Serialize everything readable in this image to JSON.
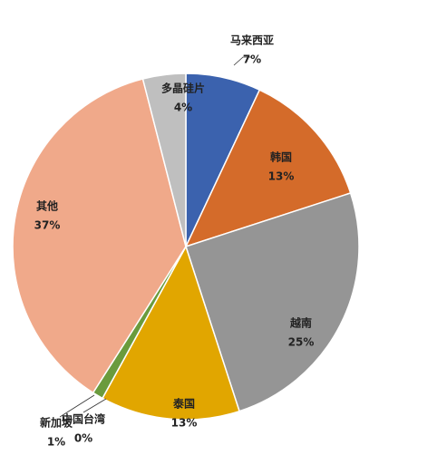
{
  "chart_data": {
    "type": "pie",
    "categories": [
      "马来西亚",
      "韩国",
      "越南",
      "泰国",
      "中国台湾",
      "新加坡",
      "其他",
      "多晶硅片"
    ],
    "values": [
      7,
      13,
      25,
      13,
      0,
      1,
      37,
      4
    ],
    "value_labels": [
      "7%",
      "13%",
      "25%",
      "13%",
      "0%",
      "1%",
      "37%",
      "4%"
    ],
    "colors": [
      "#3b62ae",
      "#d46b2a",
      "#959595",
      "#e1a600",
      "#4a78c0",
      "#6a9b3d",
      "#f0a98a",
      "#bfbfbf"
    ]
  }
}
